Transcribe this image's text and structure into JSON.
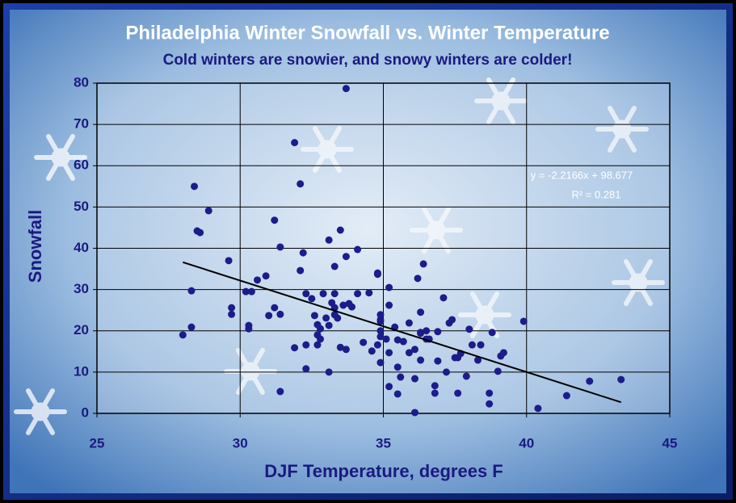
{
  "chart_data": {
    "type": "scatter",
    "title": "Philadelphia Winter Snowfall vs. Winter Temperature",
    "subtitle": "Cold winters are snowier, and snowy winters are colder!",
    "x_label": "DJF Temperature, degrees F",
    "y_label": "Snowfall",
    "xlim": [
      25,
      45
    ],
    "xticks": [
      25,
      30,
      35,
      40,
      45
    ],
    "ylim": [
      0,
      80
    ],
    "yticks": [
      0,
      10,
      20,
      30,
      40,
      50,
      60,
      70,
      80
    ],
    "grid": true,
    "color": "#1c1c8a",
    "x": [
      28.0,
      28.3,
      28.3,
      28.4,
      28.5,
      28.6,
      28.9,
      29.6,
      29.7,
      29.7,
      30.2,
      30.3,
      30.3,
      30.4,
      30.6,
      30.9,
      31.0,
      31.2,
      31.2,
      31.4,
      31.4,
      31.4,
      31.9,
      31.9,
      32.1,
      32.1,
      32.2,
      32.3,
      32.3,
      32.3,
      32.5,
      32.6,
      32.7,
      32.7,
      32.7,
      32.8,
      32.8,
      32.9,
      33.0,
      33.1,
      33.1,
      33.1,
      33.2,
      33.3,
      33.3,
      33.3,
      33.3,
      33.4,
      33.5,
      33.5,
      33.6,
      33.7,
      33.7,
      33.7,
      33.8,
      33.9,
      34.1,
      34.1,
      34.3,
      34.5,
      34.6,
      34.8,
      34.8,
      34.8,
      34.9,
      34.9,
      34.9,
      34.9,
      34.9,
      34.9,
      35.1,
      35.2,
      35.2,
      35.2,
      35.2,
      35.4,
      35.5,
      35.5,
      35.5,
      35.6,
      35.7,
      35.9,
      35.9,
      36.1,
      36.1,
      36.1,
      36.2,
      36.3,
      36.3,
      36.3,
      36.3,
      36.4,
      36.5,
      36.5,
      36.6,
      36.8,
      36.8,
      36.9,
      36.9,
      37.1,
      37.2,
      37.3,
      37.4,
      37.5,
      37.6,
      37.6,
      37.7,
      37.9,
      38.0,
      38.1,
      38.3,
      38.4,
      38.7,
      38.7,
      38.8,
      39.0,
      39.1,
      39.2,
      39.9,
      40.4,
      41.4,
      42.2,
      43.3
    ],
    "values": [
      19.0,
      20.9,
      29.7,
      55.0,
      44.2,
      43.8,
      49.1,
      37.0,
      25.6,
      24.0,
      29.5,
      21.3,
      20.5,
      29.5,
      32.3,
      33.3,
      23.7,
      46.8,
      25.6,
      24.0,
      40.3,
      5.3,
      65.6,
      15.9,
      55.6,
      34.6,
      38.9,
      29.0,
      16.6,
      10.8,
      27.8,
      23.7,
      16.6,
      21.5,
      19.0,
      18.0,
      20.5,
      29.0,
      23.1,
      42.0,
      10.0,
      21.3,
      26.8,
      35.6,
      23.9,
      29.0,
      25.6,
      23.1,
      44.4,
      16.0,
      26.2,
      38.0,
      78.7,
      15.5,
      26.6,
      25.8,
      39.7,
      29.0,
      17.2,
      29.2,
      15.1,
      16.6,
      34.0,
      33.7,
      23.9,
      22.7,
      20.0,
      12.3,
      22.3,
      18.6,
      18.0,
      26.2,
      14.7,
      30.5,
      6.5,
      20.9,
      17.8,
      11.2,
      4.7,
      8.8,
      17.4,
      21.9,
      14.7,
      0.2,
      8.4,
      15.5,
      32.7,
      12.9,
      19.6,
      24.5,
      19.4,
      36.2,
      18.0,
      20.0,
      18.0,
      4.9,
      6.7,
      12.7,
      19.8,
      28.0,
      10.0,
      21.9,
      22.7,
      13.5,
      13.5,
      4.9,
      14.5,
      9.0,
      20.4,
      16.6,
      12.9,
      16.6,
      4.9,
      2.3,
      19.6,
      10.2,
      13.9,
      14.7,
      22.3,
      1.2,
      4.3,
      7.8,
      8.2
    ],
    "trendline": {
      "slope": -2.2166,
      "intercept": 98.677,
      "color": "#000000",
      "equation": "y = -2.2166x + 98.677",
      "r2_label": "R² = 0.281",
      "r2": 0.281
    }
  }
}
